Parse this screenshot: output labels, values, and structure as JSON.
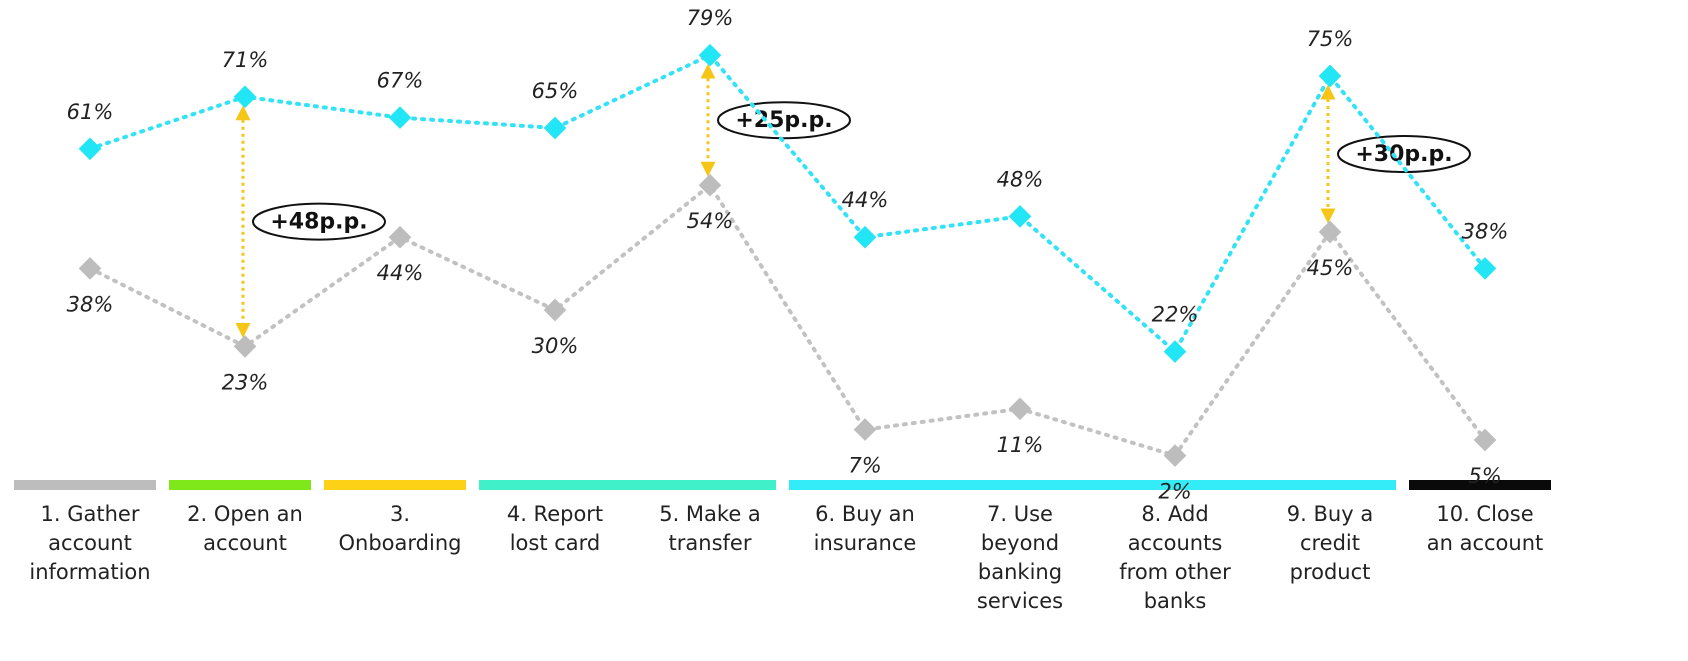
{
  "chart_data": {
    "type": "line",
    "categories": [
      "1. Gather account information",
      "2. Open an account",
      "3. Onboarding",
      "4. Report lost card",
      "5. Make a transfer",
      "6. Buy an insurance",
      "7. Use beyond banking services",
      "8. Add accounts from other banks",
      "9. Buy a credit product",
      "10. Close an account"
    ],
    "category_colors": [
      "#bdbdbd",
      "#7ee81a",
      "#fcd116",
      "#3ff0c8",
      "#3ff0c8",
      "#33ecf8",
      "#33ecf8",
      "#33ecf8",
      "#33ecf8",
      "#0a0a0a"
    ],
    "series": [
      {
        "color": "#33e3f5",
        "values": [
          61,
          71,
          67,
          65,
          79,
          44,
          48,
          22,
          75,
          38
        ],
        "value_labels": [
          "61%",
          "71%",
          "67%",
          "65%",
          "79%",
          "44%",
          "48%",
          "22%",
          "75%",
          "38%"
        ]
      },
      {
        "color": "#c2c2c2",
        "values": [
          38,
          23,
          44,
          30,
          54,
          7,
          11,
          2,
          45,
          5
        ],
        "value_labels": [
          "38%",
          "23%",
          "44%",
          "30%",
          "54%",
          "7%",
          "11%",
          "2%",
          "45%",
          "5%"
        ]
      }
    ],
    "gap_labels": [
      null,
      "+48p.p.",
      null,
      null,
      "+25p.p.",
      null,
      null,
      null,
      "+30p.p.",
      null
    ],
    "gap_color": "#f5c518"
  }
}
